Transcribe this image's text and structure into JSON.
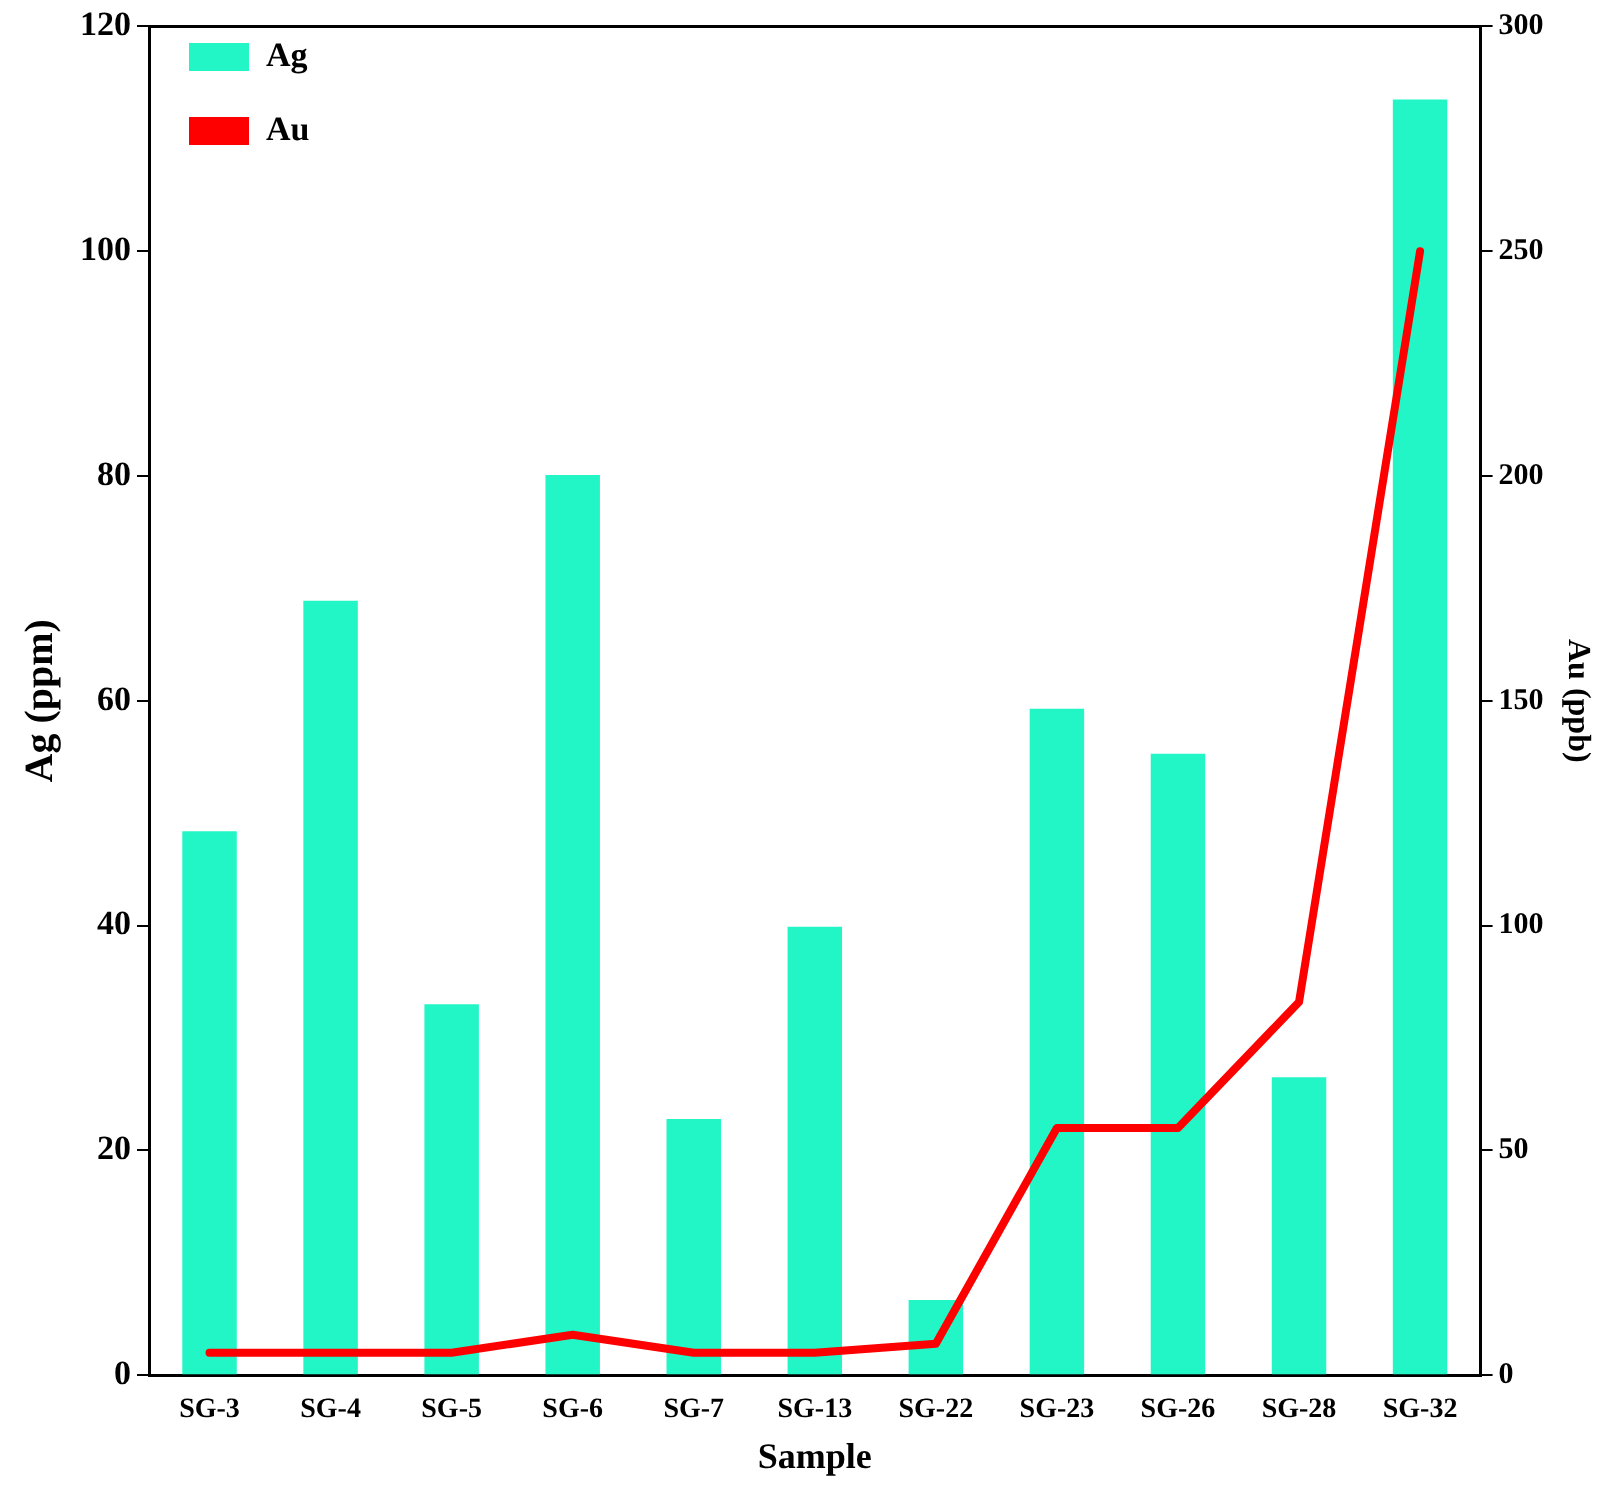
{
  "chart_data": {
    "type": "bar",
    "xlabel": "Sample",
    "ylabel": "Ag (ppm)",
    "y2label": "Au (ppb)",
    "categories": [
      "SG-3",
      "SG-4",
      "SG-5",
      "SG-6",
      "SG-7",
      "SG-13",
      "SG-22",
      "SG-23",
      "SG-26",
      "SG-28",
      "SG-32"
    ],
    "series": [
      {
        "name": "Ag",
        "color": "#22f5c6",
        "values": [
          48.4,
          68.9,
          33,
          80.1,
          22.8,
          39.9,
          6.7,
          59.3,
          55.3,
          26.5,
          113.5
        ]
      },
      {
        "name": "Au",
        "type": "line",
        "axis": "y2",
        "color": "#ff0000",
        "values": [
          5,
          5,
          5,
          9,
          5,
          5,
          7,
          55,
          55,
          83,
          250
        ]
      }
    ],
    "ylim": [
      0,
      120
    ],
    "yticks": [
      0,
      20,
      40,
      60,
      80,
      100,
      120
    ],
    "y2lim": [
      0,
      300
    ],
    "y2ticks": [
      0,
      50,
      100,
      150,
      200,
      250,
      300
    ],
    "grid": false,
    "legend": "top left",
    "marker": "none",
    "line_style": "solid"
  }
}
